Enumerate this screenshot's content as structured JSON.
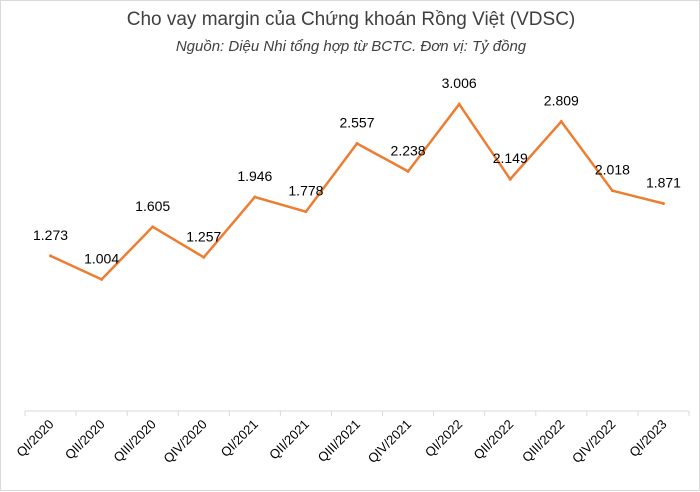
{
  "chart_data": {
    "type": "line",
    "title": "Cho vay margin của Chứng khoán Rồng Việt (VDSC)",
    "subtitle": "Nguồn: Diệu Nhi tổng hợp từ BCTC. Đơn vị: Tỷ đồng",
    "xlabel": "",
    "ylabel": "",
    "categories": [
      "QI/2020",
      "QII/2020",
      "QIII/2020",
      "QIV/2020",
      "QI/2021",
      "QII/2021",
      "QIII/2021",
      "QIV/2021",
      "QI/2022",
      "QII/2022",
      "QIII/2022",
      "QIV/2022",
      "QI/2023"
    ],
    "series": [
      {
        "values": [
          1273,
          1004,
          1605,
          1257,
          1946,
          1778,
          2557,
          2238,
          3006,
          2149,
          2809,
          2018,
          1871
        ],
        "labels": [
          "1.273",
          "1.004",
          "1.605",
          "1.257",
          "1.946",
          "1.778",
          "2.557",
          "2.238",
          "3.006",
          "2.149",
          "2.809",
          "2.018",
          "1.871"
        ],
        "color": "#ED7D31"
      }
    ],
    "ylim": [
      -500,
      3500
    ],
    "grid": false,
    "legend": "none",
    "axis_color": "#d9d9d9"
  }
}
